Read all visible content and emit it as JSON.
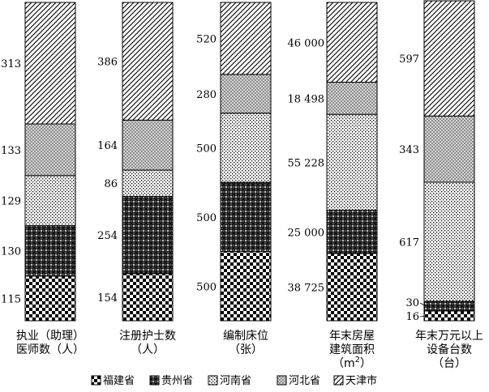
{
  "chart_data": {
    "type": "bar",
    "stacked": true,
    "normalized": true,
    "categories": [
      {
        "lines": [
          "执业（助理）",
          "医师数（人）"
        ]
      },
      {
        "lines": [
          "注册护士数",
          "（人）"
        ]
      },
      {
        "lines": [
          "编制床位",
          "（张）"
        ]
      },
      {
        "lines": [
          "年末房屋",
          "建筑面积",
          "（m",
          "2",
          "）"
        ]
      },
      {
        "lines": [
          "年末万元以上",
          "设备台数",
          "（台）"
        ]
      }
    ],
    "series": [
      {
        "name": "福建省",
        "values": [
          115,
          154,
          500,
          38725,
          16
        ],
        "labels": [
          "115",
          "154",
          "500",
          "38 725",
          "16"
        ]
      },
      {
        "name": "贵州省",
        "values": [
          130,
          254,
          500,
          25000,
          30
        ],
        "labels": [
          "130",
          "254",
          "500",
          "25 000",
          "30"
        ]
      },
      {
        "name": "河南省",
        "values": [
          129,
          86,
          500,
          55228,
          617
        ],
        "labels": [
          "129",
          "86",
          "500",
          "55 228",
          "617"
        ]
      },
      {
        "name": "河北省",
        "values": [
          133,
          164,
          280,
          18498,
          343
        ],
        "labels": [
          "133",
          "164",
          "280",
          "18 498",
          "343"
        ]
      },
      {
        "name": "天津市",
        "values": [
          313,
          386,
          520,
          46000,
          597
        ],
        "labels": [
          "313",
          "386",
          "520",
          "46 000",
          "597"
        ]
      }
    ],
    "legend": {
      "position": "bottom"
    },
    "colors": {
      "stroke": "#000000",
      "background": "#ffffff"
    }
  }
}
